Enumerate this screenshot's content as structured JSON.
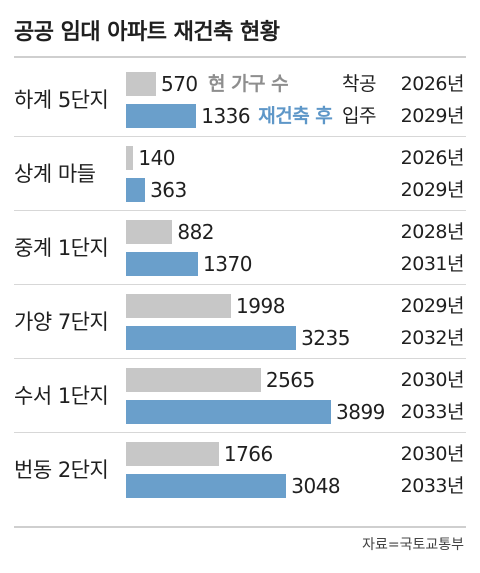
{
  "chart_data": {
    "type": "bar",
    "orientation": "horizontal",
    "title": "공공 임대 아파트 재건축 현황",
    "source": "자료=국토교통부",
    "legend": {
      "before_label": "현 가구 수",
      "after_label": "재건축 후",
      "before_year_label": "착공",
      "after_year_label": "입주"
    },
    "colors": {
      "before": "#c7c7c7",
      "after": "#6a9fcb"
    },
    "max_value": 3899,
    "categories": [
      "하계 5단지",
      "상계 마들",
      "중계 1단지",
      "가양 7단지",
      "수서 1단지",
      "번동 2단지"
    ],
    "series": [
      {
        "name": "현 가구 수",
        "values": [
          570,
          140,
          882,
          1998,
          2565,
          1766
        ]
      },
      {
        "name": "재건축 후",
        "values": [
          1336,
          363,
          1370,
          3235,
          3899,
          3048
        ]
      }
    ],
    "years": {
      "start": [
        "2026년",
        "2026년",
        "2028년",
        "2029년",
        "2030년",
        "2030년"
      ],
      "end": [
        "2029년",
        "2029년",
        "2031년",
        "2032년",
        "2033년",
        "2033년"
      ]
    }
  }
}
